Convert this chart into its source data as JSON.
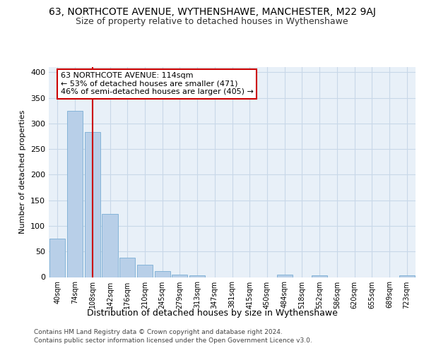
{
  "title": "63, NORTHCOTE AVENUE, WYTHENSHAWE, MANCHESTER, M22 9AJ",
  "subtitle": "Size of property relative to detached houses in Wythenshawe",
  "xlabel": "Distribution of detached houses by size in Wythenshawe",
  "ylabel": "Number of detached properties",
  "categories": [
    "40sqm",
    "74sqm",
    "108sqm",
    "142sqm",
    "176sqm",
    "210sqm",
    "245sqm",
    "279sqm",
    "313sqm",
    "347sqm",
    "381sqm",
    "415sqm",
    "450sqm",
    "484sqm",
    "518sqm",
    "552sqm",
    "586sqm",
    "620sqm",
    "655sqm",
    "689sqm",
    "723sqm"
  ],
  "values": [
    75,
    325,
    283,
    123,
    38,
    24,
    12,
    5,
    3,
    0,
    0,
    0,
    0,
    5,
    0,
    3,
    0,
    0,
    0,
    0,
    3
  ],
  "bar_color": "#b8cfe8",
  "bar_edge_color": "#7aadd4",
  "grid_color": "#c8d8e8",
  "background_color": "#e8f0f8",
  "vline_x": 2,
  "vline_color": "#cc0000",
  "annotation_line1": "63 NORTHCOTE AVENUE: 114sqm",
  "annotation_line2": "← 53% of detached houses are smaller (471)",
  "annotation_line3": "46% of semi-detached houses are larger (405) →",
  "annotation_box_facecolor": "#ffffff",
  "annotation_box_edgecolor": "#cc0000",
  "footer_line1": "Contains HM Land Registry data © Crown copyright and database right 2024.",
  "footer_line2": "Contains public sector information licensed under the Open Government Licence v3.0.",
  "ylim_max": 410,
  "yticks": [
    0,
    50,
    100,
    150,
    200,
    250,
    300,
    350,
    400
  ],
  "title_fontsize": 10,
  "subtitle_fontsize": 9,
  "ylabel_fontsize": 8,
  "xlabel_fontsize": 9,
  "tick_fontsize": 8,
  "xtick_fontsize": 7,
  "footer_fontsize": 6.5,
  "annot_fontsize": 8
}
